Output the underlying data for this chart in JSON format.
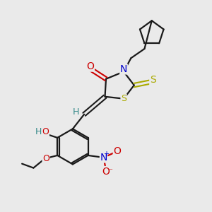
{
  "background_color": "#eaeaea",
  "bond_color": "#1a1a1a",
  "atom_colors": {
    "O": "#cc0000",
    "N": "#0000cc",
    "S": "#aaaa00",
    "H": "#338888",
    "C": "#1a1a1a"
  },
  "figsize": [
    3.0,
    3.0
  ],
  "dpi": 100
}
